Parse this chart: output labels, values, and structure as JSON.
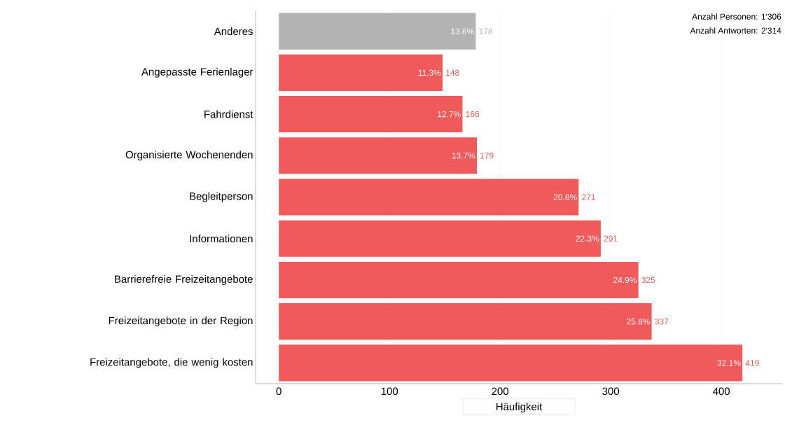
{
  "chart_data": {
    "type": "bar",
    "orientation": "horizontal",
    "xlabel": "Häufigkeit",
    "categories": [
      "Anderes",
      "Angepasste Ferienlager",
      "Fahrdienst",
      "Organisierte Wochenenden",
      "Begleitperson",
      "Informationen",
      "Barrierefreie Freizeitangebote",
      "Freizeitangebote in der Region",
      "Freizeitangebote, die wenig kosten"
    ],
    "values": [
      178,
      148,
      166,
      179,
      271,
      291,
      325,
      337,
      419
    ],
    "colors": [
      "#b3b3b3",
      "#f05a5a",
      "#f05a5a",
      "#f05a5a",
      "#f05a5a",
      "#f05a5a",
      "#f05a5a",
      "#f05a5a",
      "#f05a5a"
    ],
    "data_labels": true,
    "xlim": [
      -21,
      455
    ],
    "xticks": [
      0,
      100,
      200,
      300,
      400
    ],
    "grid": "x",
    "annotations": [
      "Anzahl Personen:  1'306",
      "Anzahl Antworten:  2'314",
      {
        "text": "13.6%",
        "x": 178,
        "y": "Anderes"
      },
      {
        "text": "11.3%",
        "x": 148,
        "y": "Angepasste Ferienlager"
      },
      {
        "text": "12.7%",
        "x": 166,
        "y": "Fahrdienst"
      },
      {
        "text": "13.7%",
        "x": 179,
        "y": "Organisierte Wochenenden"
      },
      {
        "text": "20.8%",
        "x": 271,
        "y": "Begleitperson"
      },
      {
        "text": "22.3%",
        "x": 291,
        "y": "Informationen"
      },
      {
        "text": "24.9%",
        "x": 325,
        "y": "Barrierefreie Freizeitangebote"
      },
      {
        "text": "25.8%",
        "x": 337,
        "y": "Freizeitangebote in der Region"
      },
      {
        "text": "32.1%",
        "x": 419,
        "y": "Freizeitangebote, die wenig kosten"
      }
    ]
  }
}
